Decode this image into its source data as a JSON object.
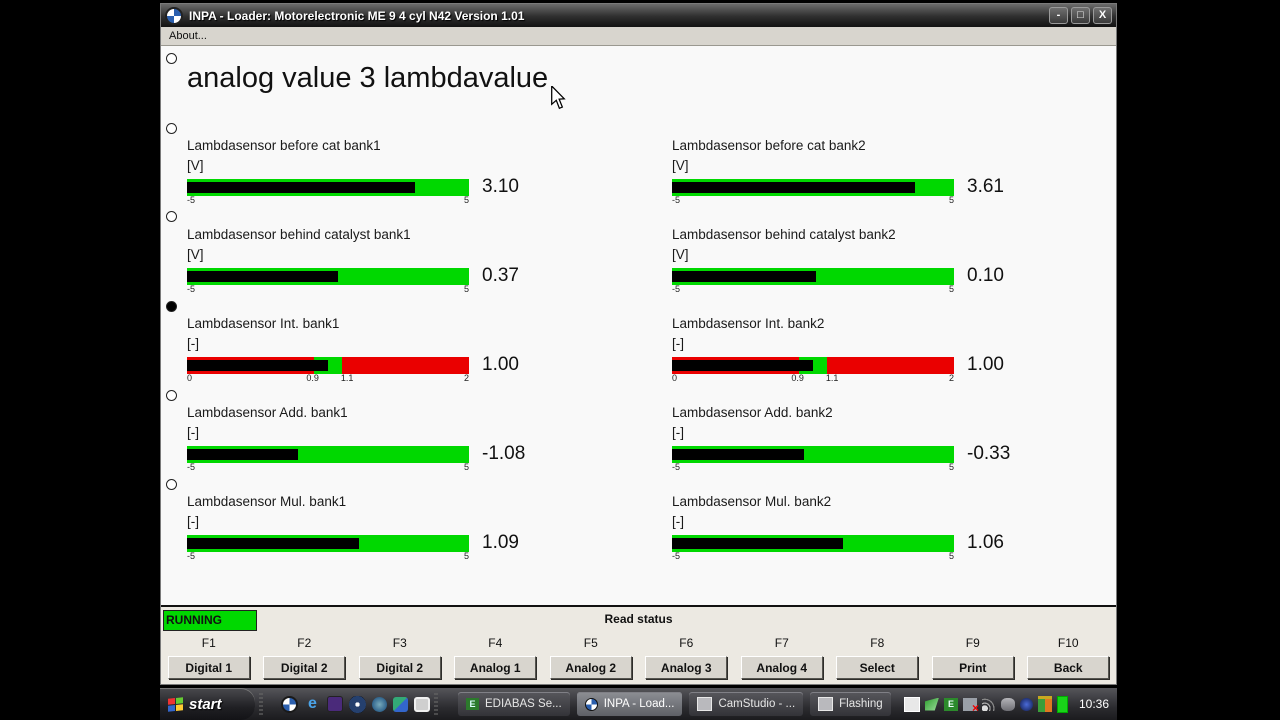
{
  "window": {
    "title": "INPA - Loader:  Motorelectronic ME 9  4 cyl N42 Version 1.01",
    "icon": "bmw-roundel-icon",
    "controls": {
      "minimize": "-",
      "maximize": "□",
      "close": "X"
    },
    "menu": {
      "about": "About..."
    },
    "heading": "analog value 3 lambdavalue"
  },
  "colors": {
    "bar_green": "#00d800",
    "bar_red": "#ea0000",
    "bar_fill": "#000000",
    "running_bg": "#00d800",
    "client_bg": "#f9f9f9",
    "titlebar": "#2e2e2e",
    "taskbar": "#2c2c30"
  },
  "chart_data": {
    "type": "bar",
    "note": "horizontal analog gauge bars; black fill length encodes value within axis range",
    "series": [
      {
        "name": "Lambdasensor before cat bank1",
        "unit": "[V]",
        "value": 3.1,
        "range": [
          -5,
          5
        ]
      },
      {
        "name": "Lambdasensor before cat bank2",
        "unit": "[V]",
        "value": 3.61,
        "range": [
          -5,
          5
        ]
      },
      {
        "name": "Lambdasensor behind catalyst bank1",
        "unit": "[V]",
        "value": 0.37,
        "range": [
          -5,
          5
        ]
      },
      {
        "name": "Lambdasensor behind catalyst bank2",
        "unit": "[V]",
        "value": 0.1,
        "range": [
          -5,
          5
        ]
      },
      {
        "name": "Lambdasensor Int. bank1",
        "unit": "[-]",
        "value": 1.0,
        "range": [
          0,
          2
        ],
        "green_zone": [
          0.9,
          1.1
        ]
      },
      {
        "name": "Lambdasensor Int. bank2",
        "unit": "[-]",
        "value": 1.0,
        "range": [
          0,
          2
        ],
        "green_zone": [
          0.9,
          1.1
        ]
      },
      {
        "name": "Lambdasensor Add. bank1",
        "unit": "[-]",
        "value": -1.08,
        "range": [
          -5,
          5
        ]
      },
      {
        "name": "Lambdasensor Add. bank2",
        "unit": "[-]",
        "value": -0.33,
        "range": [
          -5,
          5
        ]
      },
      {
        "name": "Lambdasensor Mul. bank1",
        "unit": "[-]",
        "value": 1.09,
        "range": [
          -5,
          5
        ]
      },
      {
        "name": "Lambdasensor Mul. bank2",
        "unit": "[-]",
        "value": 1.06,
        "range": [
          -5,
          5
        ]
      }
    ]
  },
  "gauges": [
    {
      "label": "Lambdasensor before cat bank1",
      "unit": "[V]",
      "value": "3.10",
      "fill_pct": 81.0,
      "ticks": [
        {
          "t": "-5"
        },
        {
          "t": "5"
        }
      ]
    },
    {
      "label": "Lambdasensor before cat bank2",
      "unit": "[V]",
      "value": "3.61",
      "fill_pct": 86.1,
      "ticks": [
        {
          "t": "-5"
        },
        {
          "t": "5"
        }
      ]
    },
    {
      "label": "Lambdasensor behind catalyst bank1",
      "unit": "[V]",
      "value": "0.37",
      "fill_pct": 53.7,
      "ticks": [
        {
          "t": "-5"
        },
        {
          "t": "5"
        }
      ]
    },
    {
      "label": "Lambdasensor behind catalyst bank2",
      "unit": "[V]",
      "value": "0.10",
      "fill_pct": 51.0,
      "ticks": [
        {
          "t": "-5"
        },
        {
          "t": "5"
        }
      ]
    },
    {
      "label": "Lambdasensor Int. bank1",
      "unit": "[-]",
      "value": "1.00",
      "fill_pct": 50.0,
      "ticks": [
        {
          "t": "0"
        },
        {
          "t": "0.9"
        },
        {
          "t": "1.1"
        },
        {
          "t": "2"
        }
      ]
    },
    {
      "label": "Lambdasensor Int. bank2",
      "unit": "[-]",
      "value": "1.00",
      "fill_pct": 50.0,
      "ticks": [
        {
          "t": "0"
        },
        {
          "t": "0.9"
        },
        {
          "t": "1.1"
        },
        {
          "t": "2"
        }
      ]
    },
    {
      "label": "Lambdasensor Add. bank1",
      "unit": "[-]",
      "value": "-1.08",
      "fill_pct": 39.2,
      "ticks": [
        {
          "t": "-5"
        },
        {
          "t": "5"
        }
      ]
    },
    {
      "label": "Lambdasensor Add. bank2",
      "unit": "[-]",
      "value": "-0.33",
      "fill_pct": 46.7,
      "ticks": [
        {
          "t": "-5"
        },
        {
          "t": "5"
        }
      ]
    },
    {
      "label": "Lambdasensor Mul. bank1",
      "unit": "[-]",
      "value": "1.09",
      "fill_pct": 60.9,
      "ticks": [
        {
          "t": "-5"
        },
        {
          "t": "5"
        }
      ]
    },
    {
      "label": "Lambdasensor Mul. bank2",
      "unit": "[-]",
      "value": "1.06",
      "fill_pct": 60.6,
      "ticks": [
        {
          "t": "-5"
        },
        {
          "t": "5"
        }
      ]
    }
  ],
  "status": {
    "running": "RUNNING",
    "read_status": "Read status"
  },
  "fkeys": [
    {
      "key": "F1",
      "label": "Digital 1"
    },
    {
      "key": "F2",
      "label": "Digital 2"
    },
    {
      "key": "F3",
      "label": "Digital 2"
    },
    {
      "key": "F4",
      "label": "Analog 1"
    },
    {
      "key": "F5",
      "label": "Analog 2"
    },
    {
      "key": "F6",
      "label": "Analog 3"
    },
    {
      "key": "F7",
      "label": "Analog 4"
    },
    {
      "key": "F8",
      "label": "Select"
    },
    {
      "key": "F9",
      "label": "Print"
    },
    {
      "key": "F10",
      "label": "Back"
    }
  ],
  "taskbar": {
    "start": "start",
    "quick_launch_icons": [
      "bmw-roundel-icon",
      "internet-explorer-icon",
      "purple-app-icon",
      "eye-viewer-icon",
      "blue-app-icon",
      "color-app-icon",
      "window-app-icon"
    ],
    "tasks": [
      {
        "label": "EDIABAS Se...",
        "icon": "ediabas-icon",
        "active": false
      },
      {
        "label": "INPA - Load...",
        "icon": "bmw-roundel-icon",
        "active": true
      },
      {
        "label": "CamStudio - ...",
        "icon": "folder-icon",
        "active": false
      },
      {
        "label": "Flashing",
        "icon": "folder-icon",
        "active": false
      }
    ],
    "tray_icons": [
      "window-icon",
      "green-network-icon",
      "ediabas-icon",
      "monitor-disconnected-icon",
      "signal-icon",
      "gray-device-icon",
      "blue-dot-icon",
      "display-colors-icon",
      "green-level-icon"
    ],
    "clock": "10:36"
  }
}
